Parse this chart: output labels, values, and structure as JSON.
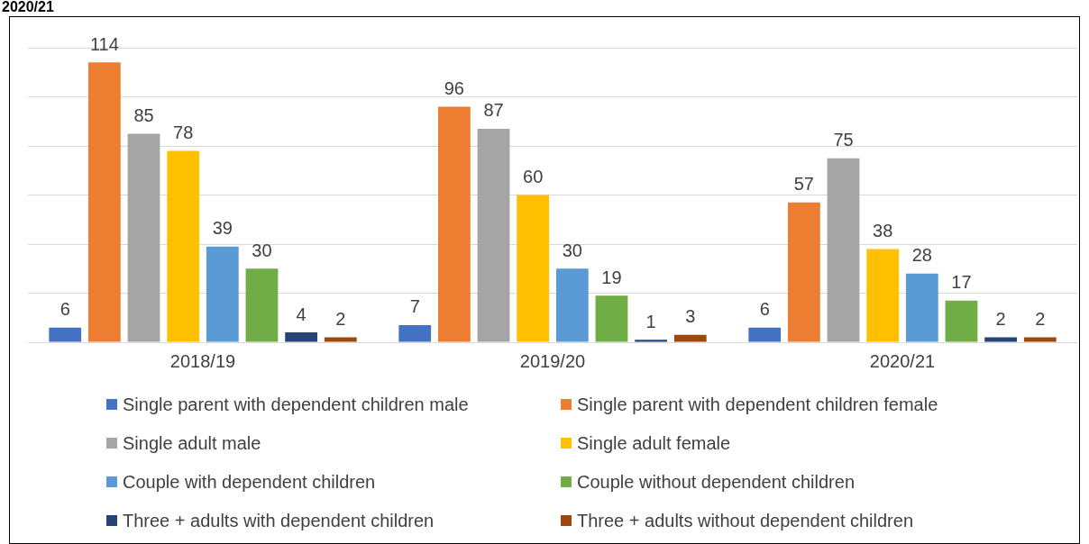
{
  "chart_data": {
    "type": "bar",
    "title": "2020/21",
    "categories": [
      "2018/19",
      "2019/20",
      "2020/21"
    ],
    "series": [
      {
        "name": "Single parent with dependent children male",
        "color": "#4472c4",
        "values": [
          6,
          7,
          6
        ]
      },
      {
        "name": "Single parent with dependent children female",
        "color": "#ed7d31",
        "values": [
          114,
          96,
          57
        ]
      },
      {
        "name": "Single adult male",
        "color": "#a5a5a5",
        "values": [
          85,
          87,
          75
        ]
      },
      {
        "name": "Single adult female",
        "color": "#ffc000",
        "values": [
          78,
          60,
          38
        ]
      },
      {
        "name": "Couple with dependent children",
        "color": "#5b9bd5",
        "values": [
          39,
          30,
          28
        ]
      },
      {
        "name": "Couple without dependent children",
        "color": "#70ad47",
        "values": [
          30,
          19,
          17
        ]
      },
      {
        "name": "Three + adults with dependent children",
        "color": "#264478",
        "values": [
          4,
          1,
          2
        ]
      },
      {
        "name": "Three + adults without dependent children",
        "color": "#9e480e",
        "values": [
          2,
          3,
          2
        ]
      }
    ],
    "grid": "y",
    "tick_labels": "x",
    "legend": "bottom",
    "data_labels": true
  }
}
